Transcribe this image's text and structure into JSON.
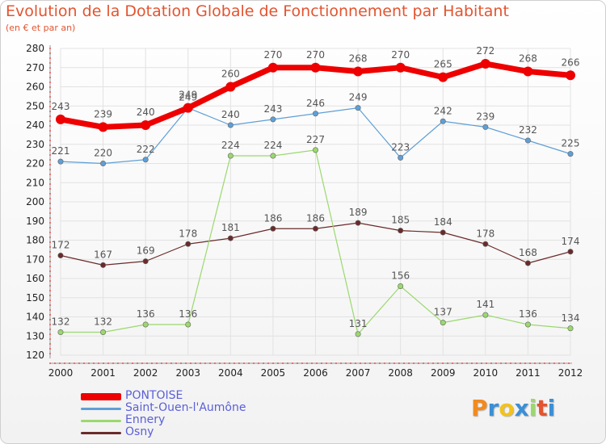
{
  "chart_data": {
    "type": "line",
    "title": "Evolution de la Dotation Globale de Fonctionnement par Habitant",
    "subtitle": "(en € et par an)",
    "x": [
      "2000",
      "2001",
      "2002",
      "2003",
      "2004",
      "2005",
      "2006",
      "2007",
      "2008",
      "2009",
      "2010",
      "2011",
      "2012"
    ],
    "ylim": [
      120,
      280
    ],
    "yticks": [
      120,
      130,
      140,
      150,
      160,
      170,
      180,
      190,
      200,
      210,
      220,
      230,
      240,
      250,
      260,
      270,
      280
    ],
    "grid": true,
    "legend_placement": "bottom-left",
    "series": [
      {
        "name": "PONTOISE",
        "color": "#ee0000",
        "values": [
          243,
          239,
          240,
          249,
          260,
          270,
          270,
          268,
          270,
          265,
          272,
          268,
          266
        ]
      },
      {
        "name": "Saint-Ouen-l'Aumône",
        "color": "#5f9fd6",
        "values": [
          221,
          220,
          222,
          249,
          240,
          243,
          246,
          249,
          223,
          242,
          239,
          232,
          225
        ]
      },
      {
        "name": "Ennery",
        "color": "#9bd86e",
        "values": [
          132,
          132,
          136,
          136,
          224,
          224,
          227,
          131,
          156,
          137,
          141,
          136,
          134
        ]
      },
      {
        "name": "Osny",
        "color": "#6b2a2a",
        "values": [
          172,
          167,
          169,
          178,
          181,
          186,
          186,
          189,
          185,
          184,
          178,
          168,
          174
        ]
      }
    ]
  },
  "logo": {
    "letters": [
      "P",
      "r",
      "o",
      "x",
      "i",
      "t",
      "i"
    ],
    "colors": [
      "#f28a1e",
      "#3b8fd6",
      "#f2c21e",
      "#3b8fd6",
      "#9bd86e",
      "#e3542f",
      "#3b8fd6"
    ]
  }
}
